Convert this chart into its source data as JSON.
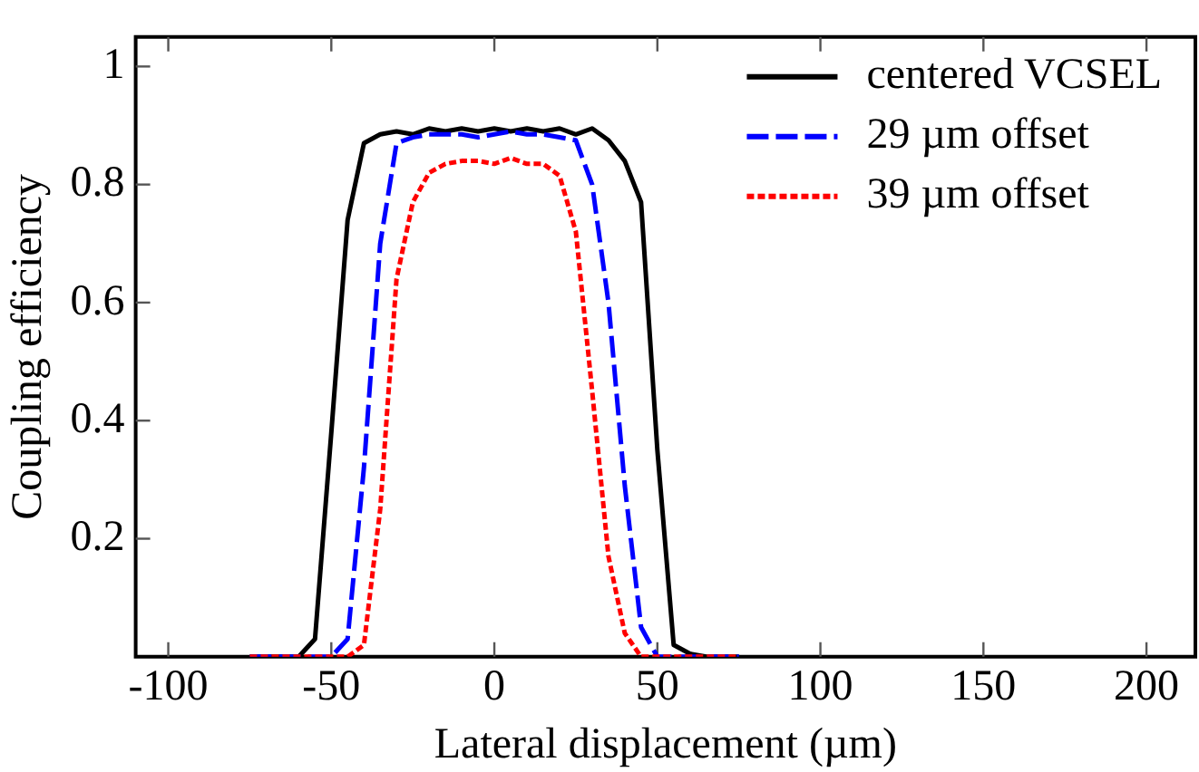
{
  "chart_data": {
    "type": "line",
    "xlabel": "Lateral displacement (µm)",
    "ylabel": "Coupling efficiency",
    "xlim": [
      -110,
      215
    ],
    "ylim": [
      0,
      1.05
    ],
    "xticks": [
      -100,
      -50,
      0,
      50,
      100,
      150,
      200
    ],
    "yticks": [
      0.2,
      0.4,
      0.6,
      0.8,
      1
    ],
    "grid": false,
    "legend": "top right",
    "marker": "none",
    "x": [
      -75,
      -70,
      -65,
      -60,
      -55,
      -50,
      -45,
      -40,
      -35,
      -30,
      -25,
      -20,
      -15,
      -10,
      -5,
      0,
      5,
      10,
      15,
      20,
      25,
      30,
      35,
      40,
      45,
      50,
      55,
      60,
      65,
      70,
      75
    ],
    "series": [
      {
        "name": "centered VCSEL",
        "color": "#000000",
        "line_style": "solid",
        "values": [
          0,
          0,
          0,
          0,
          0.03,
          0.38,
          0.74,
          0.87,
          0.885,
          0.89,
          0.885,
          0.895,
          0.89,
          0.895,
          0.89,
          0.895,
          0.89,
          0.895,
          0.89,
          0.895,
          0.885,
          0.895,
          0.875,
          0.84,
          0.77,
          0.35,
          0.02,
          0.005,
          0,
          0,
          0
        ]
      },
      {
        "name": "29 µm offset",
        "color": "#0000ff",
        "line_style": "dashed",
        "values": [
          0,
          0,
          0,
          0,
          0,
          0,
          0.03,
          0.32,
          0.7,
          0.87,
          0.88,
          0.885,
          0.885,
          0.885,
          0.88,
          0.885,
          0.89,
          0.885,
          0.885,
          0.88,
          0.875,
          0.8,
          0.6,
          0.29,
          0.05,
          0,
          0,
          0,
          0,
          0,
          0
        ]
      },
      {
        "name": "39 µm offset",
        "color": "#ff0000",
        "line_style": "dotted",
        "values": [
          0,
          0,
          0,
          0,
          0,
          0,
          0,
          0.02,
          0.25,
          0.64,
          0.77,
          0.82,
          0.835,
          0.84,
          0.84,
          0.835,
          0.845,
          0.835,
          0.835,
          0.815,
          0.72,
          0.45,
          0.17,
          0.04,
          0,
          0,
          0,
          0,
          0,
          0,
          0
        ]
      }
    ]
  }
}
